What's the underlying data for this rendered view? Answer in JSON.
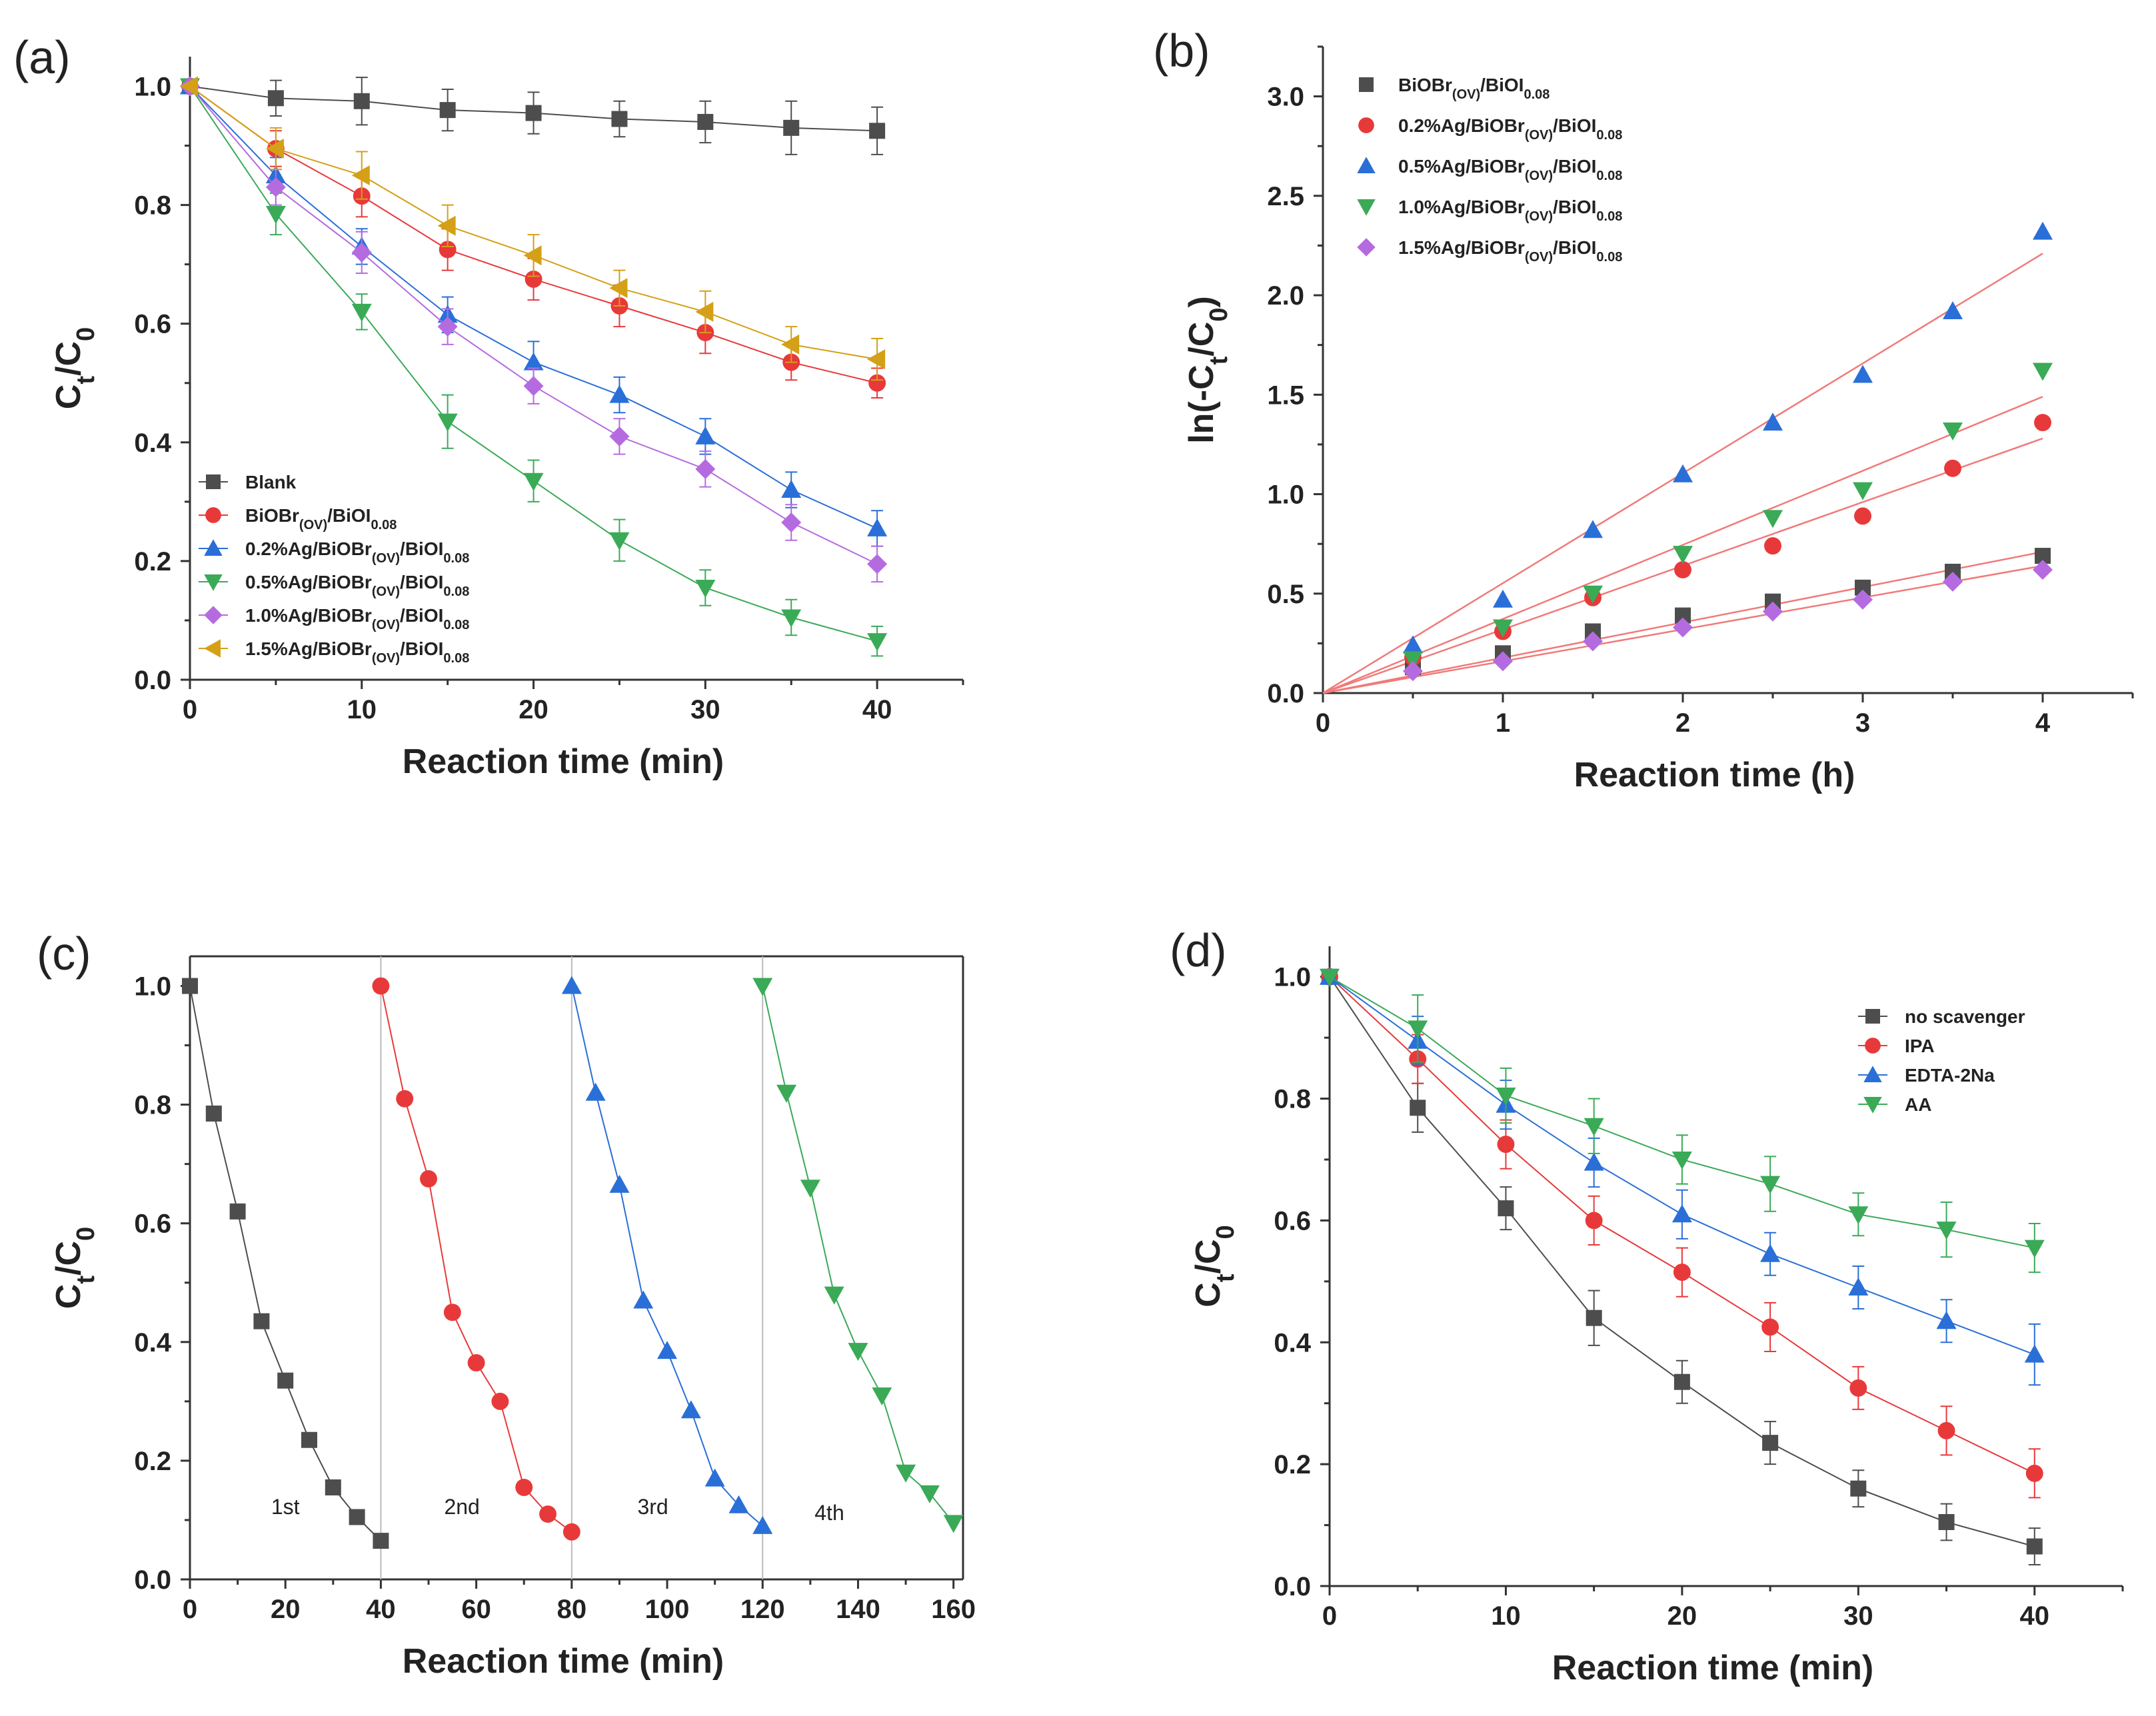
{
  "chart_data": [
    {
      "panel": "(a)",
      "type": "line",
      "xlabel": "Reaction time (min)",
      "ylabel": "Ct/C0",
      "xlim": [
        0,
        45
      ],
      "ylim": [
        0,
        1.05
      ],
      "xticks": [
        0,
        10,
        20,
        30,
        40
      ],
      "yticks": [
        0.0,
        0.2,
        0.4,
        0.6,
        0.8,
        1.0
      ],
      "x": [
        0,
        5,
        10,
        15,
        20,
        25,
        30,
        35,
        40
      ],
      "legend_position": "bottom-left",
      "series": [
        {
          "name": "Blank",
          "name_parts": [
            "Blank"
          ],
          "color": "#4d4d4d",
          "marker": "square",
          "values": [
            1.0,
            0.98,
            0.975,
            0.96,
            0.955,
            0.945,
            0.94,
            0.93,
            0.925
          ],
          "errors": [
            0.0,
            0.03,
            0.04,
            0.035,
            0.035,
            0.03,
            0.035,
            0.045,
            0.04
          ]
        },
        {
          "name": "BiOBr(OV)/BiOI0.08",
          "name_parts": [
            "BiOBr",
            "(OV)",
            "/BiOI",
            "0.08"
          ],
          "color": "#e8393a",
          "marker": "circle",
          "values": [
            1.0,
            0.895,
            0.815,
            0.725,
            0.675,
            0.63,
            0.585,
            0.535,
            0.5
          ],
          "errors": [
            0.0,
            0.03,
            0.035,
            0.035,
            0.035,
            0.035,
            0.035,
            0.03,
            0.025
          ]
        },
        {
          "name": "0.2%Ag/BiOBr(OV)/BiOI0.08",
          "name_parts": [
            "0.2%Ag/BiOBr",
            "(OV)",
            "/BiOI",
            "0.08"
          ],
          "color": "#2a6fd8",
          "marker": "triangle-up",
          "values": [
            1.0,
            0.85,
            0.73,
            0.615,
            0.535,
            0.48,
            0.41,
            0.32,
            0.255
          ],
          "errors": [
            0.0,
            0.03,
            0.03,
            0.03,
            0.035,
            0.03,
            0.03,
            0.03,
            0.03
          ]
        },
        {
          "name": "0.5%Ag/BiOBr(OV)/BiOI0.08",
          "name_parts": [
            "0.5%Ag/BiOBr",
            "(OV)",
            "/BiOI",
            "0.08"
          ],
          "color": "#3aaa57",
          "marker": "triangle-down",
          "values": [
            1.0,
            0.785,
            0.62,
            0.435,
            0.335,
            0.235,
            0.155,
            0.105,
            0.065
          ],
          "errors": [
            0.0,
            0.035,
            0.03,
            0.045,
            0.035,
            0.035,
            0.03,
            0.03,
            0.025
          ]
        },
        {
          "name": "1.0%Ag/BiOBr(OV)/BiOI0.08",
          "name_parts": [
            "1.0%Ag/BiOBr",
            "(OV)",
            "/BiOI",
            "0.08"
          ],
          "color": "#b56be0",
          "marker": "diamond",
          "values": [
            1.0,
            0.83,
            0.72,
            0.595,
            0.495,
            0.41,
            0.355,
            0.265,
            0.195
          ],
          "errors": [
            0.0,
            0.03,
            0.035,
            0.03,
            0.03,
            0.03,
            0.03,
            0.03,
            0.03
          ]
        },
        {
          "name": "1.5%Ag/BiOBr(OV)/BiOI0.08",
          "name_parts": [
            "1.5%Ag/BiOBr",
            "(OV)",
            "/BiOI",
            "0.08"
          ],
          "color": "#d4a017",
          "marker": "triangle-left",
          "values": [
            1.0,
            0.895,
            0.85,
            0.765,
            0.715,
            0.66,
            0.62,
            0.565,
            0.54
          ],
          "errors": [
            0.0,
            0.035,
            0.04,
            0.035,
            0.035,
            0.03,
            0.035,
            0.03,
            0.035
          ]
        }
      ]
    },
    {
      "panel": "(b)",
      "type": "scatter",
      "xlabel": "Reaction time (h)",
      "ylabel": "ln(-Ct/C0)",
      "xlim": [
        0,
        4.5
      ],
      "ylim": [
        0,
        3.25
      ],
      "xticks": [
        0,
        1,
        2,
        3,
        4
      ],
      "yticks": [
        0.0,
        0.5,
        1.0,
        1.5,
        2.0,
        2.5,
        3.0
      ],
      "x": [
        0,
        0.5,
        1,
        1.5,
        2,
        2.5,
        3,
        3.5,
        4
      ],
      "legend_position": "top-left",
      "fit_line_color": "#f07a7a",
      "series": [
        {
          "name": "BiOBr(OV)/BiOI0.08",
          "name_parts": [
            "BiOBr",
            "(OV)",
            "/BiOI",
            "0.08"
          ],
          "color": "#4d4d4d",
          "marker": "square",
          "values": [
            0,
            0.13,
            0.2,
            0.31,
            0.39,
            0.46,
            0.53,
            0.61,
            0.69
          ],
          "fit_end": 0.71
        },
        {
          "name": "0.2%Ag/BiOBr(OV)/BiOI0.08",
          "name_parts": [
            "0.2%Ag/BiOBr",
            "(OV)",
            "/BiOI",
            "0.08"
          ],
          "color": "#e8393a",
          "marker": "circle",
          "values": [
            0,
            0.18,
            0.31,
            0.48,
            0.62,
            0.74,
            0.89,
            1.13,
            1.36
          ],
          "fit_end": 1.28
        },
        {
          "name": "0.5%Ag/BiOBr(OV)/BiOI0.08",
          "name_parts": [
            "0.5%Ag/BiOBr",
            "(OV)",
            "/BiOI",
            "0.08"
          ],
          "color": "#2a6fd8",
          "marker": "triangle-up",
          "values": [
            0,
            0.24,
            0.47,
            0.82,
            1.1,
            1.36,
            1.6,
            1.92,
            2.32
          ],
          "fit_end": 2.21
        },
        {
          "name": "1.0%Ag/BiOBr(OV)/BiOI0.08",
          "name_parts": [
            "1.0%Ag/BiOBr",
            "(OV)",
            "/BiOI",
            "0.08"
          ],
          "color": "#3aaa57",
          "marker": "triangle-down",
          "values": [
            0,
            0.17,
            0.33,
            0.5,
            0.7,
            0.88,
            1.02,
            1.32,
            1.62
          ],
          "fit_end": 1.49
        },
        {
          "name": "1.5%Ag/BiOBr(OV)/BiOI0.08",
          "name_parts": [
            "1.5%Ag/BiOBr",
            "(OV)",
            "/BiOI",
            "0.08"
          ],
          "color": "#b56be0",
          "marker": "diamond",
          "values": [
            0,
            0.11,
            0.16,
            0.26,
            0.33,
            0.41,
            0.47,
            0.56,
            0.62
          ],
          "fit_end": 0.64
        }
      ]
    },
    {
      "panel": "(c)",
      "type": "line",
      "xlabel": "Reaction time (min)",
      "ylabel": "Ct/C0",
      "xlim": [
        0,
        162
      ],
      "ylim": [
        0,
        1.05
      ],
      "xticks": [
        0,
        20,
        40,
        60,
        80,
        100,
        120,
        140,
        160
      ],
      "yticks": [
        0.0,
        0.2,
        0.4,
        0.6,
        0.8,
        1.0
      ],
      "cycle_dividers": [
        40,
        80,
        120
      ],
      "annotations": [
        {
          "text": "1st",
          "x": 20,
          "y": 0.11
        },
        {
          "text": "2nd",
          "x": 57,
          "y": 0.11
        },
        {
          "text": "3rd",
          "x": 97,
          "y": 0.11
        },
        {
          "text": "4th",
          "x": 134,
          "y": 0.1
        }
      ],
      "series": [
        {
          "name": "",
          "color": "#4d4d4d",
          "marker": "square",
          "x": [
            0,
            5,
            10,
            15,
            20,
            25,
            30,
            35,
            40
          ],
          "values": [
            1.0,
            0.785,
            0.62,
            0.435,
            0.335,
            0.235,
            0.155,
            0.105,
            0.065
          ]
        },
        {
          "name": "",
          "color": "#e8393a",
          "marker": "circle",
          "x": [
            40,
            45,
            50,
            55,
            60,
            65,
            70,
            75,
            80
          ],
          "values": [
            1.0,
            0.81,
            0.675,
            0.45,
            0.365,
            0.3,
            0.155,
            0.11,
            0.08
          ]
        },
        {
          "name": "",
          "color": "#2a6fd8",
          "marker": "triangle-up",
          "x": [
            80,
            85,
            90,
            95,
            100,
            105,
            110,
            115,
            120
          ],
          "values": [
            1.0,
            0.82,
            0.665,
            0.47,
            0.385,
            0.285,
            0.17,
            0.125,
            0.09
          ]
        },
        {
          "name": "",
          "color": "#3aaa57",
          "marker": "triangle-down",
          "x": [
            120,
            125,
            130,
            135,
            140,
            145,
            150,
            155,
            160
          ],
          "values": [
            1.0,
            0.82,
            0.66,
            0.48,
            0.385,
            0.31,
            0.18,
            0.145,
            0.095
          ]
        }
      ]
    },
    {
      "panel": "(d)",
      "type": "line",
      "xlabel": "Reaction time (min)",
      "ylabel": "Ct/C0",
      "xlim": [
        0,
        45
      ],
      "ylim": [
        0,
        1.05
      ],
      "xticks": [
        0,
        10,
        20,
        30,
        40
      ],
      "yticks": [
        0.0,
        0.2,
        0.4,
        0.6,
        0.8,
        1.0
      ],
      "x": [
        0,
        5,
        10,
        15,
        20,
        25,
        30,
        35,
        40
      ],
      "legend_position": "top-right",
      "series": [
        {
          "name": "no scavenger",
          "name_parts": [
            "no scavenger"
          ],
          "color": "#4d4d4d",
          "marker": "square",
          "values": [
            1.0,
            0.785,
            0.62,
            0.44,
            0.335,
            0.235,
            0.16,
            0.105,
            0.065
          ],
          "errors": [
            0.0,
            0.04,
            0.035,
            0.045,
            0.035,
            0.035,
            0.03,
            0.03,
            0.03
          ]
        },
        {
          "name": "IPA",
          "name_parts": [
            "IPA"
          ],
          "color": "#e8393a",
          "marker": "circle",
          "values": [
            1.0,
            0.865,
            0.725,
            0.6,
            0.515,
            0.425,
            0.325,
            0.255,
            0.185
          ],
          "errors": [
            0.0,
            0.04,
            0.04,
            0.04,
            0.04,
            0.04,
            0.035,
            0.04,
            0.04
          ]
        },
        {
          "name": "EDTA-2Na",
          "name_parts": [
            "EDTA-2Na"
          ],
          "color": "#2a6fd8",
          "marker": "triangle-up",
          "values": [
            1.0,
            0.895,
            0.79,
            0.695,
            0.61,
            0.545,
            0.49,
            0.435,
            0.38
          ],
          "errors": [
            0.0,
            0.04,
            0.04,
            0.04,
            0.04,
            0.035,
            0.035,
            0.035,
            0.05
          ]
        },
        {
          "name": "AA",
          "name_parts": [
            "AA"
          ],
          "color": "#3aaa57",
          "marker": "triangle-down",
          "values": [
            1.0,
            0.915,
            0.805,
            0.755,
            0.7,
            0.66,
            0.61,
            0.585,
            0.555
          ],
          "errors": [
            0.0,
            0.055,
            0.045,
            0.045,
            0.04,
            0.045,
            0.035,
            0.045,
            0.04
          ]
        }
      ]
    }
  ]
}
